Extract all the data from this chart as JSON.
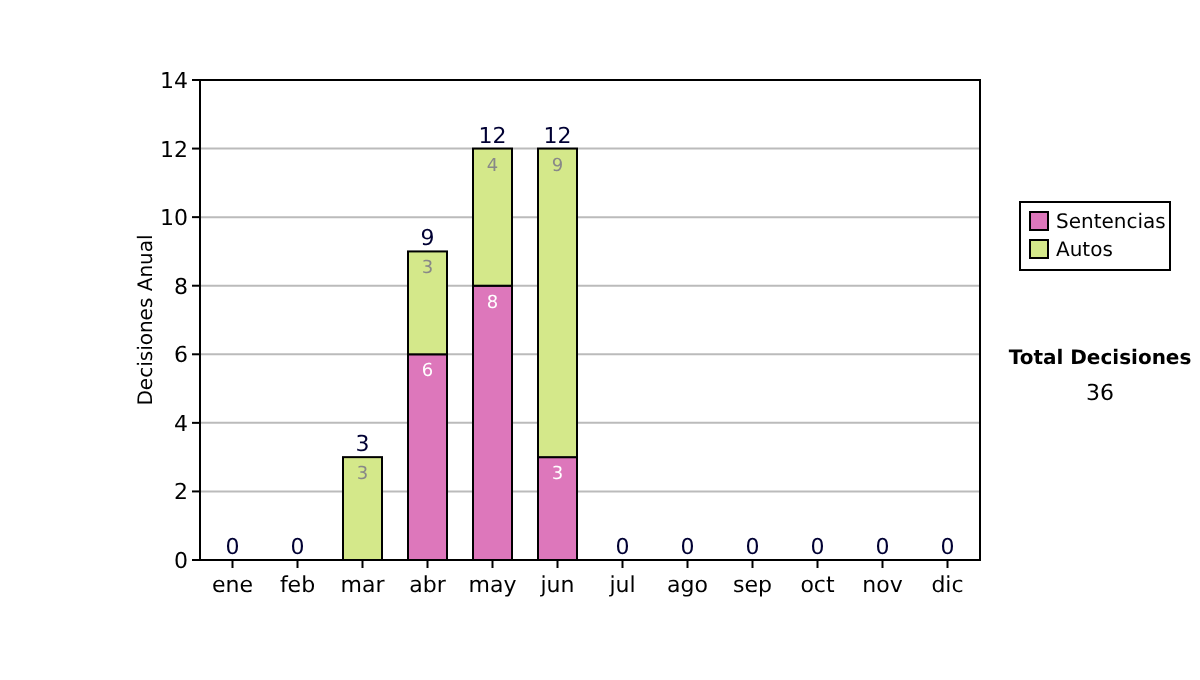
{
  "chart_data": {
    "type": "bar",
    "stacked": true,
    "ylabel": "Decisiones Anual",
    "categories": [
      "ene",
      "feb",
      "mar",
      "abr",
      "may",
      "jun",
      "jul",
      "ago",
      "sep",
      "oct",
      "nov",
      "dic"
    ],
    "series": [
      {
        "name": "Sentencias",
        "color": "#dd77bb",
        "values": [
          0,
          0,
          0,
          6,
          8,
          3,
          0,
          0,
          0,
          0,
          0,
          0
        ],
        "value_labels": [
          null,
          null,
          null,
          "6",
          "8",
          "3",
          null,
          null,
          null,
          null,
          null,
          null
        ]
      },
      {
        "name": "Autos",
        "color": "#d4e88a",
        "values": [
          0,
          0,
          3,
          3,
          4,
          9,
          0,
          0,
          0,
          0,
          0,
          0
        ],
        "value_labels": [
          null,
          null,
          "3",
          "3",
          "4",
          "9",
          null,
          null,
          null,
          null,
          null,
          null
        ]
      }
    ],
    "totals": [
      "0",
      "0",
      "3",
      "9",
      "12",
      "12",
      "0",
      "0",
      "0",
      "0",
      "0",
      "0"
    ],
    "ylim": [
      0,
      14
    ],
    "yticks": [
      0,
      2,
      4,
      6,
      8,
      10,
      12,
      14
    ],
    "grid": "y",
    "legend": "right",
    "annotations": [
      "Total Decisiones",
      "36"
    ]
  }
}
